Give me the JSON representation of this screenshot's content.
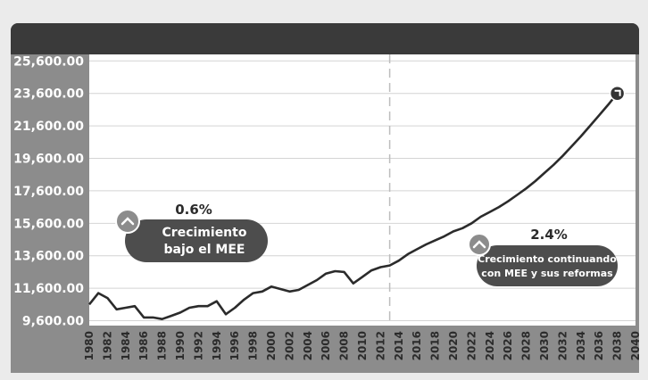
{
  "chart_data": {
    "type": "line",
    "title": "",
    "xlabel": "",
    "ylabel": "",
    "x": [
      1980,
      1981,
      1982,
      1983,
      1984,
      1985,
      1986,
      1987,
      1988,
      1989,
      1990,
      1991,
      1992,
      1993,
      1994,
      1995,
      1996,
      1997,
      1998,
      1999,
      2000,
      2001,
      2002,
      2003,
      2004,
      2005,
      2006,
      2007,
      2008,
      2009,
      2010,
      2011,
      2012,
      2013,
      2014,
      2015,
      2016,
      2017,
      2018,
      2019,
      2020,
      2021,
      2022,
      2023,
      2024,
      2025,
      2026,
      2027,
      2028,
      2029,
      2030,
      2031,
      2032,
      2033,
      2034,
      2035,
      2036,
      2037,
      2038
    ],
    "series": [
      {
        "values": [
          10600,
          11300,
          11000,
          10300,
          10400,
          10500,
          9800,
          9800,
          9700,
          9900,
          10100,
          10400,
          10500,
          10500,
          10800,
          10000,
          10400,
          10900,
          11300,
          11400,
          11700,
          11550,
          11400,
          11500,
          11800,
          12100,
          12500,
          12650,
          12600,
          11900,
          12300,
          12700,
          12900,
          13000,
          13300,
          13700,
          14000,
          14300,
          14550,
          14800,
          15100,
          15300,
          15600,
          16000,
          16300,
          16600,
          16950,
          17350,
          17750,
          18200,
          18700,
          19200,
          19750,
          20350,
          20950,
          21600,
          22250,
          22900,
          23600
        ]
      }
    ],
    "xlim": [
      1980,
      2040
    ],
    "ylim": [
      9300,
      26000
    ],
    "y_ticks": [
      "25,600.00",
      "23,600.00",
      "21,600.00",
      "19,600.00",
      "17,600.00",
      "15,600.00",
      "13,600.00",
      "11,600.00",
      "9,600.00"
    ],
    "x_ticks": [
      "1980",
      "1982",
      "1984",
      "1986",
      "1988",
      "1990",
      "1992",
      "1994",
      "1996",
      "1998",
      "2000",
      "2002",
      "2004",
      "2006",
      "2008",
      "2010",
      "2012",
      "2014",
      "2016",
      "2018",
      "2020",
      "2022",
      "2024",
      "2026",
      "2028",
      "2030",
      "2032",
      "2034",
      "2036",
      "2038",
      "2040"
    ],
    "divider_x": 2013,
    "grid": true,
    "annotations": {
      "left_pct": "0.6%",
      "left_text": [
        "Crecimiento",
        "bajo el MEE"
      ],
      "right_pct": "2.4%",
      "right_text": [
        "Crecimiento continuando",
        "con MEE y sus reformas"
      ]
    }
  },
  "colors": {
    "header": "#3a3a3a",
    "axis_band": "#8c8c8c",
    "plot_bg": "#ffffff",
    "line": "#2b2b2b",
    "pill": "#4d4d4d",
    "badge": "#8c8c8c",
    "divider": "#bdbdbd",
    "grid": "#d4d4d4"
  }
}
